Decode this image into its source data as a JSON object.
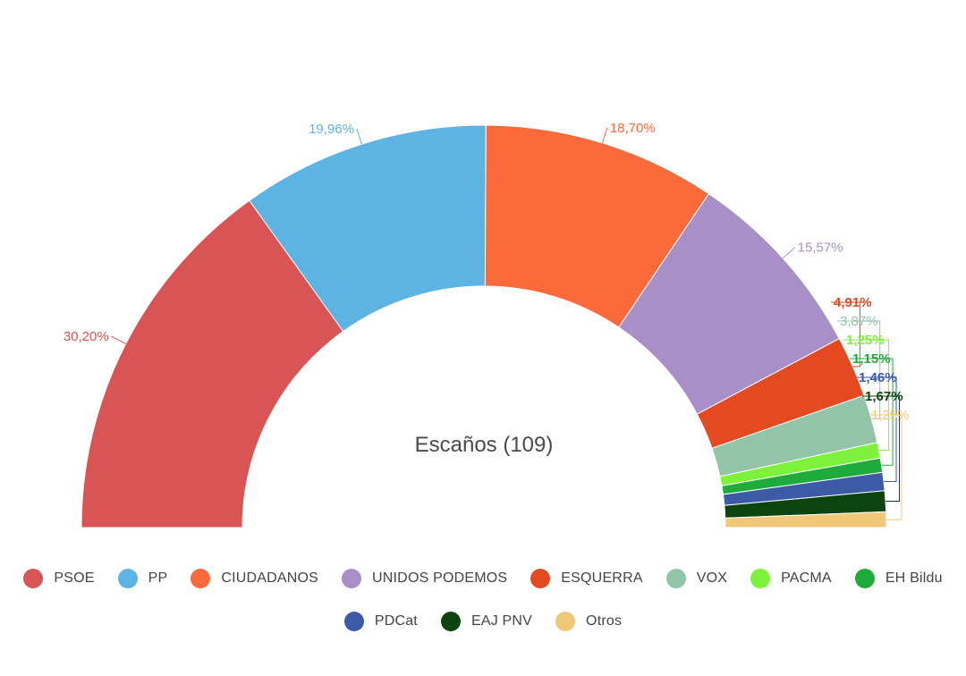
{
  "chart_data": {
    "type": "pie",
    "subtype": "semicircle-donut",
    "center_label": "Escaños (109)",
    "series": [
      {
        "name": "PSOE",
        "value": 30.2,
        "label": "30,20%",
        "color": "#d95454",
        "bold": false
      },
      {
        "name": "PP",
        "value": 19.96,
        "label": "19,96%",
        "color": "#5db3e2",
        "bold": false
      },
      {
        "name": "CIUDADANOS",
        "value": 18.7,
        "label": "18,70%",
        "color": "#fb6a3a",
        "bold": false
      },
      {
        "name": "UNIDOS PODEMOS",
        "value": 15.57,
        "label": "15,57%",
        "color": "#a98fc8",
        "bold": false
      },
      {
        "name": "ESQUERRA",
        "value": 4.91,
        "label": "4,91%",
        "color": "#e34a22",
        "bold": true
      },
      {
        "name": "VOX",
        "value": 3.87,
        "label": "3,87%",
        "color": "#92c4a7",
        "bold": false
      },
      {
        "name": "PACMA",
        "value": 1.25,
        "label": "1,25%",
        "color": "#7df23a",
        "bold": true
      },
      {
        "name": "EH Bildu",
        "value": 1.15,
        "label": "1,15%",
        "color": "#1fab3c",
        "bold": true
      },
      {
        "name": "PDCat",
        "value": 1.46,
        "label": "1,46%",
        "color": "#3c5aa6",
        "bold": true
      },
      {
        "name": "EAJ PNV",
        "value": 1.67,
        "label": "1,67%",
        "color": "#0c4410",
        "bold": true
      },
      {
        "name": "Otros",
        "value": 1.25,
        "label": "1,25%",
        "color": "#f0c878",
        "bold": false
      }
    ],
    "legend_position": "bottom"
  },
  "legend": {
    "row1": [
      {
        "label": "PSOE",
        "color": "#d95454"
      },
      {
        "label": "PP",
        "color": "#5db3e2"
      },
      {
        "label": "CIUDADANOS",
        "color": "#fb6a3a"
      },
      {
        "label": "UNIDOS PODEMOS",
        "color": "#a98fc8"
      },
      {
        "label": "ESQUERRA",
        "color": "#e34a22"
      },
      {
        "label": "VOX",
        "color": "#92c4a7"
      },
      {
        "label": "PACMA",
        "color": "#7df23a"
      },
      {
        "label": "EH Bildu",
        "color": "#1fab3c"
      }
    ],
    "row2": [
      {
        "label": "PDCat",
        "color": "#3c5aa6"
      },
      {
        "label": "EAJ PNV",
        "color": "#0c4410"
      },
      {
        "label": "Otros",
        "color": "#f0c878"
      }
    ]
  }
}
